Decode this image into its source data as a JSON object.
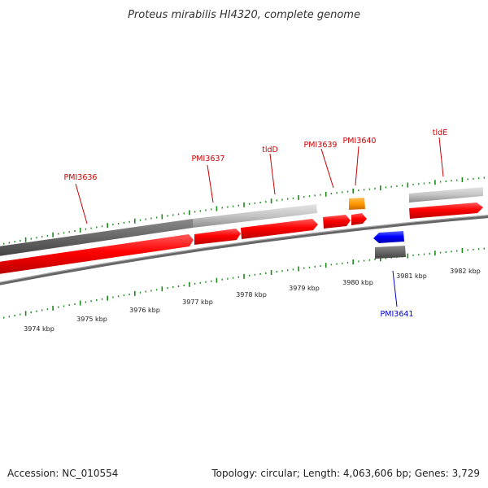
{
  "title": "Proteus mirabilis HI4320, complete genome",
  "footer": {
    "accession": "Accession: NC_010554",
    "summary": "Topology: circular; Length: 4,063,606 bp; Genes: 3,729"
  },
  "colors": {
    "forward_gene": "#ff0000",
    "reverse_gene": "#0000ff",
    "rna_feature": "#ff9900",
    "forward_label": "#cc0000",
    "reverse_label": "#0000cc",
    "tick": "#1a8a1a",
    "backbone": "#777777",
    "locus_dark": "#666666",
    "locus_light": "#c0c0c0"
  },
  "scale_labels": [
    {
      "value": 3974,
      "text": "3974 kbp"
    },
    {
      "value": 3975,
      "text": "3975 kbp"
    },
    {
      "value": 3976,
      "text": "3976 kbp"
    },
    {
      "value": 3977,
      "text": "3977 kbp"
    },
    {
      "value": 3978,
      "text": "3978 kbp"
    },
    {
      "value": 3979,
      "text": "3979 kbp"
    },
    {
      "value": 3980,
      "text": "3980 kbp"
    },
    {
      "value": 3981,
      "text": "3981 kbp"
    },
    {
      "value": 3982,
      "text": "3982 kbp"
    }
  ],
  "genes": [
    {
      "id": "PMI3636",
      "label": "PMI3636",
      "strand": "+"
    },
    {
      "id": "PMI3637",
      "label": "PMI3637",
      "strand": "+"
    },
    {
      "id": "tldD",
      "label": "tldD",
      "strand": "+"
    },
    {
      "id": "PMI3639",
      "label": "PMI3639",
      "strand": "+"
    },
    {
      "id": "PMI3640",
      "label": "PMI3640",
      "strand": "+"
    },
    {
      "id": "tldE",
      "label": "tldE",
      "strand": "+"
    },
    {
      "id": "PMI3641",
      "label": "PMI3641",
      "strand": "-"
    }
  ]
}
